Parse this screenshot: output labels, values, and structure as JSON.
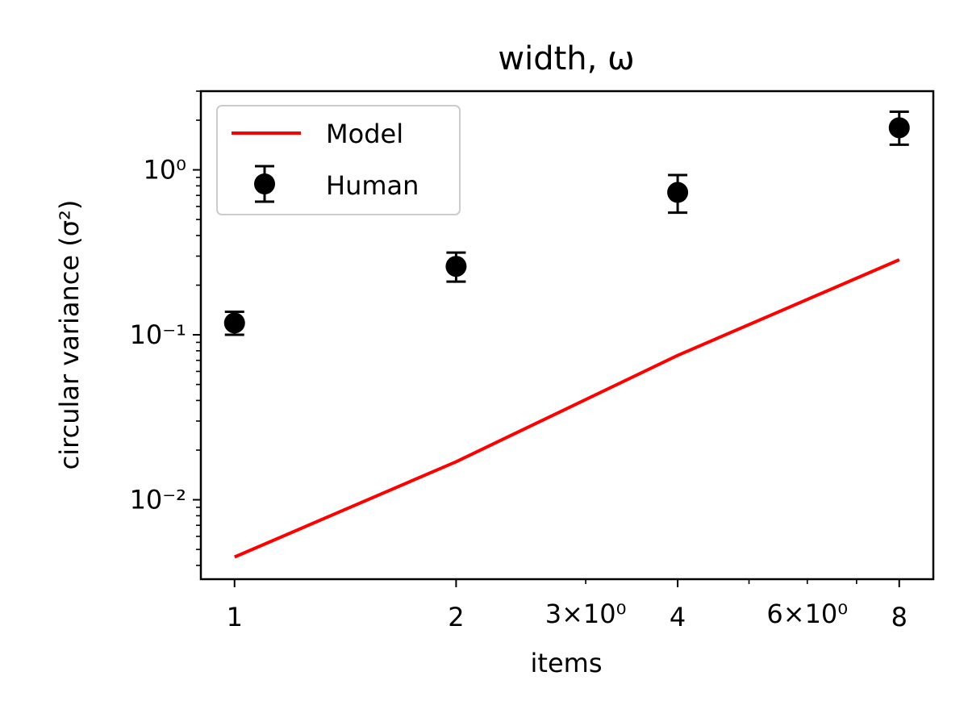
{
  "chart_data": {
    "type": "line",
    "title": "width, ω",
    "xlabel": "items",
    "ylabel": "circular variance (σ²)",
    "xscale": "log",
    "yscale": "log",
    "xlim": [
      0.9,
      8.9
    ],
    "ylim": [
      0.0033,
      3.0
    ],
    "x_major_ticks": [
      {
        "value": 1,
        "label": "1"
      },
      {
        "value": 2,
        "label": "2"
      },
      {
        "value": 4,
        "label": "4"
      },
      {
        "value": 8,
        "label": "8"
      }
    ],
    "x_minor_labeled_ticks": [
      {
        "value": 3,
        "label": "3×10⁰"
      },
      {
        "value": 6,
        "label": "6×10⁰"
      }
    ],
    "x_minor_unlabeled_ticks": [
      5,
      7
    ],
    "y_major_ticks": [
      {
        "value": 0.01,
        "label": "10⁻²"
      },
      {
        "value": 0.1,
        "label": "10⁻¹"
      },
      {
        "value": 1,
        "label": "10⁰"
      }
    ],
    "grid": false,
    "legend_position": "top-left",
    "series": [
      {
        "name": "Model",
        "kind": "line",
        "color": "#ff0000",
        "x": [
          1,
          2,
          4,
          8
        ],
        "y": [
          0.0045,
          0.017,
          0.075,
          0.285
        ]
      },
      {
        "name": "Human",
        "kind": "errorbar",
        "color": "#000000",
        "x": [
          1,
          2,
          4,
          8
        ],
        "y": [
          0.118,
          0.26,
          0.73,
          1.8
        ],
        "yerr_low": [
          0.1,
          0.21,
          0.55,
          1.42
        ],
        "yerr_high": [
          0.138,
          0.315,
          0.93,
          2.25
        ]
      }
    ]
  }
}
